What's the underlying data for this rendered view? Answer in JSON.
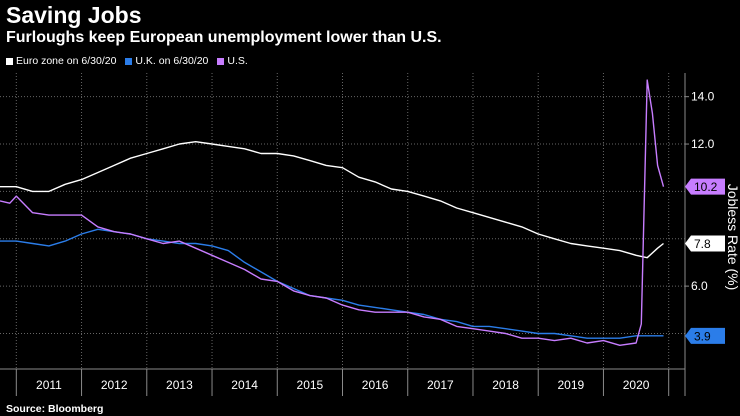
{
  "chart_data": {
    "type": "line",
    "title": "Saving Jobs",
    "subtitle": "Furloughs keep European unemployment lower than U.S.",
    "ylabel": "Jobless Rate (%)",
    "source": "Source: Bloomberg",
    "x_ticks": [
      "2011",
      "2012",
      "2013",
      "2014",
      "2015",
      "2016",
      "2017",
      "2018",
      "2019",
      "2020"
    ],
    "xlim": [
      2010.25,
      2020.75
    ],
    "y_ticks": [
      "14.0",
      "12.0",
      "6.0"
    ],
    "y_tick_values": [
      14,
      12,
      6
    ],
    "ylim": [
      2.5,
      15
    ],
    "grid": true,
    "legend_position": "top-left",
    "series": [
      {
        "name": "Euro zone on 6/30/20",
        "color": "#ffffff",
        "end_label": "7.8",
        "end_value": 7.8,
        "x": [
          2010.25,
          2010.5,
          2010.75,
          2011.0,
          2011.25,
          2011.5,
          2011.75,
          2012.0,
          2012.25,
          2012.5,
          2012.75,
          2013.0,
          2013.25,
          2013.5,
          2013.75,
          2014.0,
          2014.25,
          2014.5,
          2014.75,
          2015.0,
          2015.25,
          2015.5,
          2015.75,
          2016.0,
          2016.25,
          2016.5,
          2016.75,
          2017.0,
          2017.25,
          2017.5,
          2017.75,
          2018.0,
          2018.25,
          2018.5,
          2018.75,
          2019.0,
          2019.25,
          2019.5,
          2019.75,
          2020.0,
          2020.17,
          2020.33,
          2020.42
        ],
        "values": [
          10.2,
          10.2,
          10.0,
          10.0,
          10.3,
          10.5,
          10.8,
          11.1,
          11.4,
          11.6,
          11.8,
          12.0,
          12.1,
          12.0,
          11.9,
          11.8,
          11.6,
          11.6,
          11.5,
          11.3,
          11.1,
          11.0,
          10.6,
          10.4,
          10.1,
          10.0,
          9.8,
          9.6,
          9.3,
          9.1,
          8.9,
          8.7,
          8.5,
          8.2,
          8.0,
          7.8,
          7.7,
          7.6,
          7.5,
          7.3,
          7.2,
          7.6,
          7.8
        ]
      },
      {
        "name": "U.K. on 6/30/20",
        "color": "#2b7de9",
        "end_label": "3.9",
        "end_value": 3.9,
        "x": [
          2010.25,
          2010.5,
          2010.75,
          2011.0,
          2011.25,
          2011.5,
          2011.75,
          2012.0,
          2012.25,
          2012.5,
          2012.75,
          2013.0,
          2013.25,
          2013.5,
          2013.75,
          2014.0,
          2014.25,
          2014.5,
          2014.75,
          2015.0,
          2015.25,
          2015.5,
          2015.75,
          2016.0,
          2016.25,
          2016.5,
          2016.75,
          2017.0,
          2017.25,
          2017.5,
          2017.75,
          2018.0,
          2018.25,
          2018.5,
          2018.75,
          2019.0,
          2019.25,
          2019.5,
          2019.75,
          2020.0,
          2020.17,
          2020.42
        ],
        "values": [
          7.9,
          7.9,
          7.8,
          7.7,
          7.9,
          8.2,
          8.4,
          8.3,
          8.2,
          8.0,
          7.9,
          7.8,
          7.8,
          7.7,
          7.5,
          7.0,
          6.6,
          6.2,
          5.9,
          5.6,
          5.5,
          5.4,
          5.2,
          5.1,
          5.0,
          4.9,
          4.8,
          4.6,
          4.5,
          4.3,
          4.3,
          4.2,
          4.1,
          4.0,
          4.0,
          3.9,
          3.8,
          3.8,
          3.8,
          3.9,
          3.9,
          3.9
        ]
      },
      {
        "name": "U.S.",
        "color": "#c77dff",
        "end_label": "10.2",
        "end_value": 10.2,
        "x": [
          2010.25,
          2010.4,
          2010.5,
          2010.75,
          2011.0,
          2011.25,
          2011.5,
          2011.75,
          2012.0,
          2012.25,
          2012.5,
          2012.75,
          2013.0,
          2013.25,
          2013.5,
          2013.75,
          2014.0,
          2014.25,
          2014.5,
          2014.75,
          2015.0,
          2015.25,
          2015.5,
          2015.75,
          2016.0,
          2016.25,
          2016.5,
          2016.75,
          2017.0,
          2017.25,
          2017.5,
          2017.75,
          2018.0,
          2018.25,
          2018.5,
          2018.75,
          2019.0,
          2019.25,
          2019.5,
          2019.75,
          2020.0,
          2020.08,
          2020.17,
          2020.25,
          2020.33,
          2020.42
        ],
        "values": [
          9.6,
          9.5,
          9.8,
          9.1,
          9.0,
          9.0,
          9.0,
          8.5,
          8.3,
          8.2,
          8.0,
          7.8,
          7.9,
          7.6,
          7.3,
          7.0,
          6.7,
          6.3,
          6.2,
          5.8,
          5.6,
          5.5,
          5.2,
          5.0,
          4.9,
          4.9,
          4.9,
          4.7,
          4.6,
          4.3,
          4.2,
          4.1,
          4.0,
          3.8,
          3.8,
          3.7,
          3.8,
          3.6,
          3.7,
          3.5,
          3.6,
          4.4,
          14.7,
          13.3,
          11.1,
          10.2
        ]
      }
    ]
  }
}
